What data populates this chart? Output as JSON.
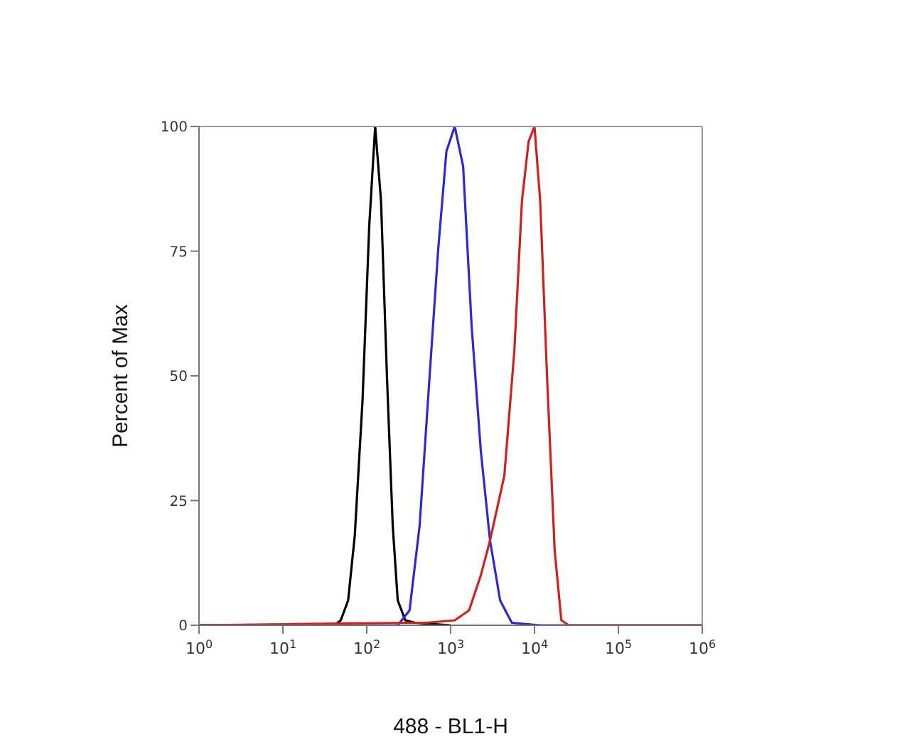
{
  "chart_data": {
    "type": "line",
    "xlabel": "488 - BL1-H",
    "ylabel": "Percent of Max",
    "log": "x",
    "xlim": [
      1,
      1000000
    ],
    "xticks": [
      {
        "value": 1,
        "label": "10$^{0}$"
      },
      {
        "value": 10,
        "label": "10$^{1}$"
      },
      {
        "value": 100,
        "label": "10$^{2}$"
      },
      {
        "value": 1000,
        "label": "10$^{3}$"
      },
      {
        "value": 10000,
        "label": "10$^{4}$"
      },
      {
        "value": 100000,
        "label": "10$^{5}$"
      },
      {
        "value": 1000000,
        "label": "10$^{6}$"
      }
    ],
    "ylim": [
      0,
      100
    ],
    "yticks": [
      0,
      25,
      50,
      75,
      100
    ],
    "marker": "none",
    "line_style": "solid",
    "series": [
      {
        "color": "#000000",
        "x": [
          1,
          41,
          49,
          60,
          72,
          89,
          107,
          126,
          148,
          174,
          204,
          234,
          288,
          380,
          1000
        ],
        "values": [
          0,
          0,
          1,
          5,
          18,
          45,
          80,
          100,
          85,
          50,
          20,
          5,
          1,
          0.5,
          0
        ]
      },
      {
        "color": "#2a2ad0",
        "x": [
          1,
          234,
          324,
          427,
          562,
          708,
          891,
          1120,
          1410,
          1780,
          2290,
          2950,
          3890,
          5370,
          11700,
          1000000
        ],
        "values": [
          0,
          0,
          3,
          20,
          50,
          75,
          95,
          100,
          92,
          60,
          35,
          17,
          5,
          0.5,
          0,
          0
        ]
      },
      {
        "color": "#d02020",
        "x": [
          1,
          288,
          513,
          1120,
          1660,
          2290,
          2950,
          4370,
          5750,
          7080,
          8510,
          10000,
          11700,
          14100,
          17400,
          20900,
          25700,
          1000000
        ],
        "values": [
          0,
          0.5,
          0.5,
          1,
          3,
          10,
          17,
          30,
          55,
          85,
          97,
          100,
          85,
          50,
          15,
          1,
          0,
          0
        ]
      }
    ]
  }
}
